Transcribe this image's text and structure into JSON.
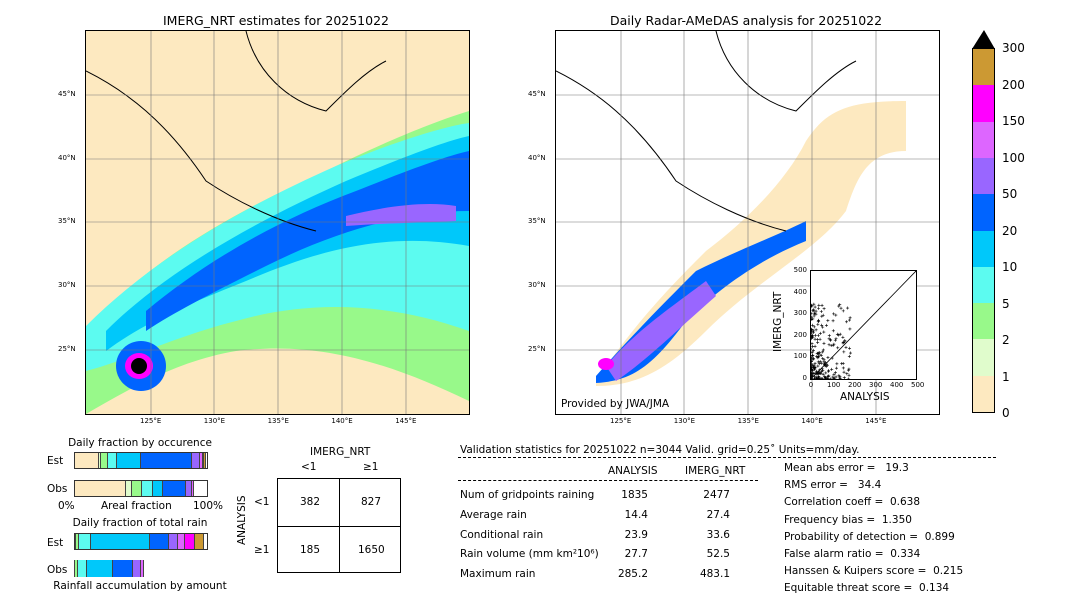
{
  "left_map": {
    "title": "IMERG_NRT estimates for 20251022",
    "lat_labels": [
      "45°N",
      "40°N",
      "35°N",
      "30°N",
      "25°N"
    ],
    "lon_labels": [
      "125°E",
      "130°E",
      "135°E",
      "140°E",
      "145°E"
    ]
  },
  "right_map": {
    "title": "Daily Radar-AMeDAS analysis for 20251022",
    "lat_labels": [
      "45°N",
      "40°N",
      "35°N",
      "30°N",
      "25°N"
    ],
    "lon_labels": [
      "125°E",
      "130°E",
      "135°E",
      "140°E",
      "145°E"
    ],
    "credit": "Provided by JWA/JMA"
  },
  "colorbar": {
    "levels": [
      "0",
      "1",
      "2",
      "5",
      "10",
      "20",
      "50",
      "100",
      "150",
      "200",
      "300"
    ],
    "colors": [
      "#fde9c0",
      "#e0fccc",
      "#98f98a",
      "#5cfbf0",
      "#00c8fa",
      "#0064ff",
      "#9966ff",
      "#dd66ff",
      "#ff00ff",
      "#cc9933"
    ]
  },
  "chart_data": {
    "type": "scatter",
    "xlabel": "ANALYSIS",
    "ylabel": "IMERG_NRT",
    "xlim": [
      0,
      500
    ],
    "ylim": [
      0,
      500
    ],
    "xticks": [
      "0",
      "100",
      "200",
      "300",
      "400",
      "500"
    ],
    "yticks": [
      "0",
      "100",
      "200",
      "300",
      "400",
      "500"
    ]
  },
  "occurrence": {
    "title": "Daily fraction by occurence",
    "est_label": "Est",
    "obs_label": "Obs",
    "axis_left": "0%",
    "axis_mid": "Areal fraction",
    "axis_right": "100%",
    "est": [
      0.18,
      0.02,
      0.05,
      0.07,
      0.18,
      0.39,
      0.06,
      0.02,
      0.01,
      0.01
    ],
    "obs": [
      0.39,
      0.04,
      0.08,
      0.08,
      0.08,
      0.17,
      0.05,
      0.01,
      0,
      0
    ]
  },
  "total_rain": {
    "title": "Daily fraction of total rain",
    "est_label": "Est",
    "obs_label": "Obs",
    "footer": "Rainfall accumulation by amount",
    "est": [
      0,
      0.01,
      0.02,
      0.09,
      0.45,
      0.14,
      0.07,
      0.05,
      0.08,
      0.07
    ],
    "obs": [
      0,
      0.01,
      0.02,
      0.07,
      0.19,
      0.15,
      0.06,
      0.02,
      0,
      0
    ]
  },
  "contingency": {
    "col_title": "IMERG_NRT",
    "row_title": "ANALYSIS",
    "col_lt": "<1",
    "col_ge": "≥1",
    "row_lt": "<1",
    "row_ge": "≥1",
    "cells": [
      "382",
      "827",
      "185",
      "1650"
    ]
  },
  "stats": {
    "header": "Validation statistics for 20251022  n=3044 Valid. grid=0.25˚ Units=mm/day.",
    "col1": "ANALYSIS",
    "col2": "IMERG_NRT",
    "rows": [
      {
        "label": "Num of gridpoints raining",
        "a": "1835",
        "b": "2477"
      },
      {
        "label": "Average rain",
        "a": "14.4",
        "b": "27.4"
      },
      {
        "label": "Conditional rain",
        "a": "23.9",
        "b": "33.6"
      },
      {
        "label": "Rain volume (mm km²10⁶)",
        "a": "27.7",
        "b": "52.5"
      },
      {
        "label": "Maximum rain",
        "a": "285.2",
        "b": "483.1"
      }
    ],
    "scores": [
      "Mean abs error =   19.3",
      "RMS error =   34.4",
      "Correlation coeff =  0.638",
      "Frequency bias =  1.350",
      "Probability of detection =  0.899",
      "False alarm ratio =  0.334",
      "Hanssen & Kuipers score =  0.215",
      "Equitable threat score =  0.134"
    ]
  }
}
